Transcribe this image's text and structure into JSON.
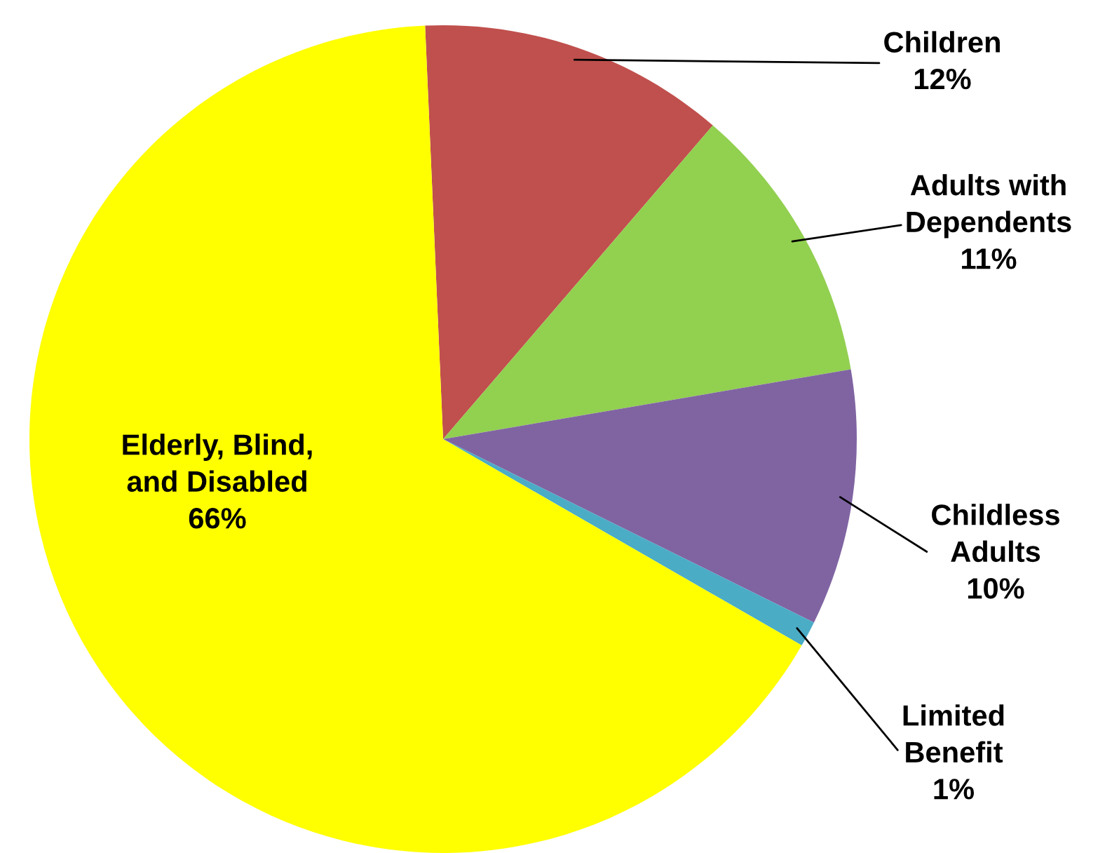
{
  "chart_data": {
    "type": "pie",
    "categories": [
      "Children",
      "Adults with\nDependents",
      "Childless\nAdults",
      "Limited\nBenefit",
      "Elderly, Blind,\nand Disabled"
    ],
    "values": [
      12,
      11,
      10,
      1,
      66
    ],
    "value_labels": [
      "12%",
      "11%",
      "10%",
      "1%",
      "66%"
    ],
    "colors": [
      "#c0504d",
      "#92d050",
      "#8064a2",
      "#4bacc6",
      "#ffff00"
    ],
    "legend": false
  }
}
